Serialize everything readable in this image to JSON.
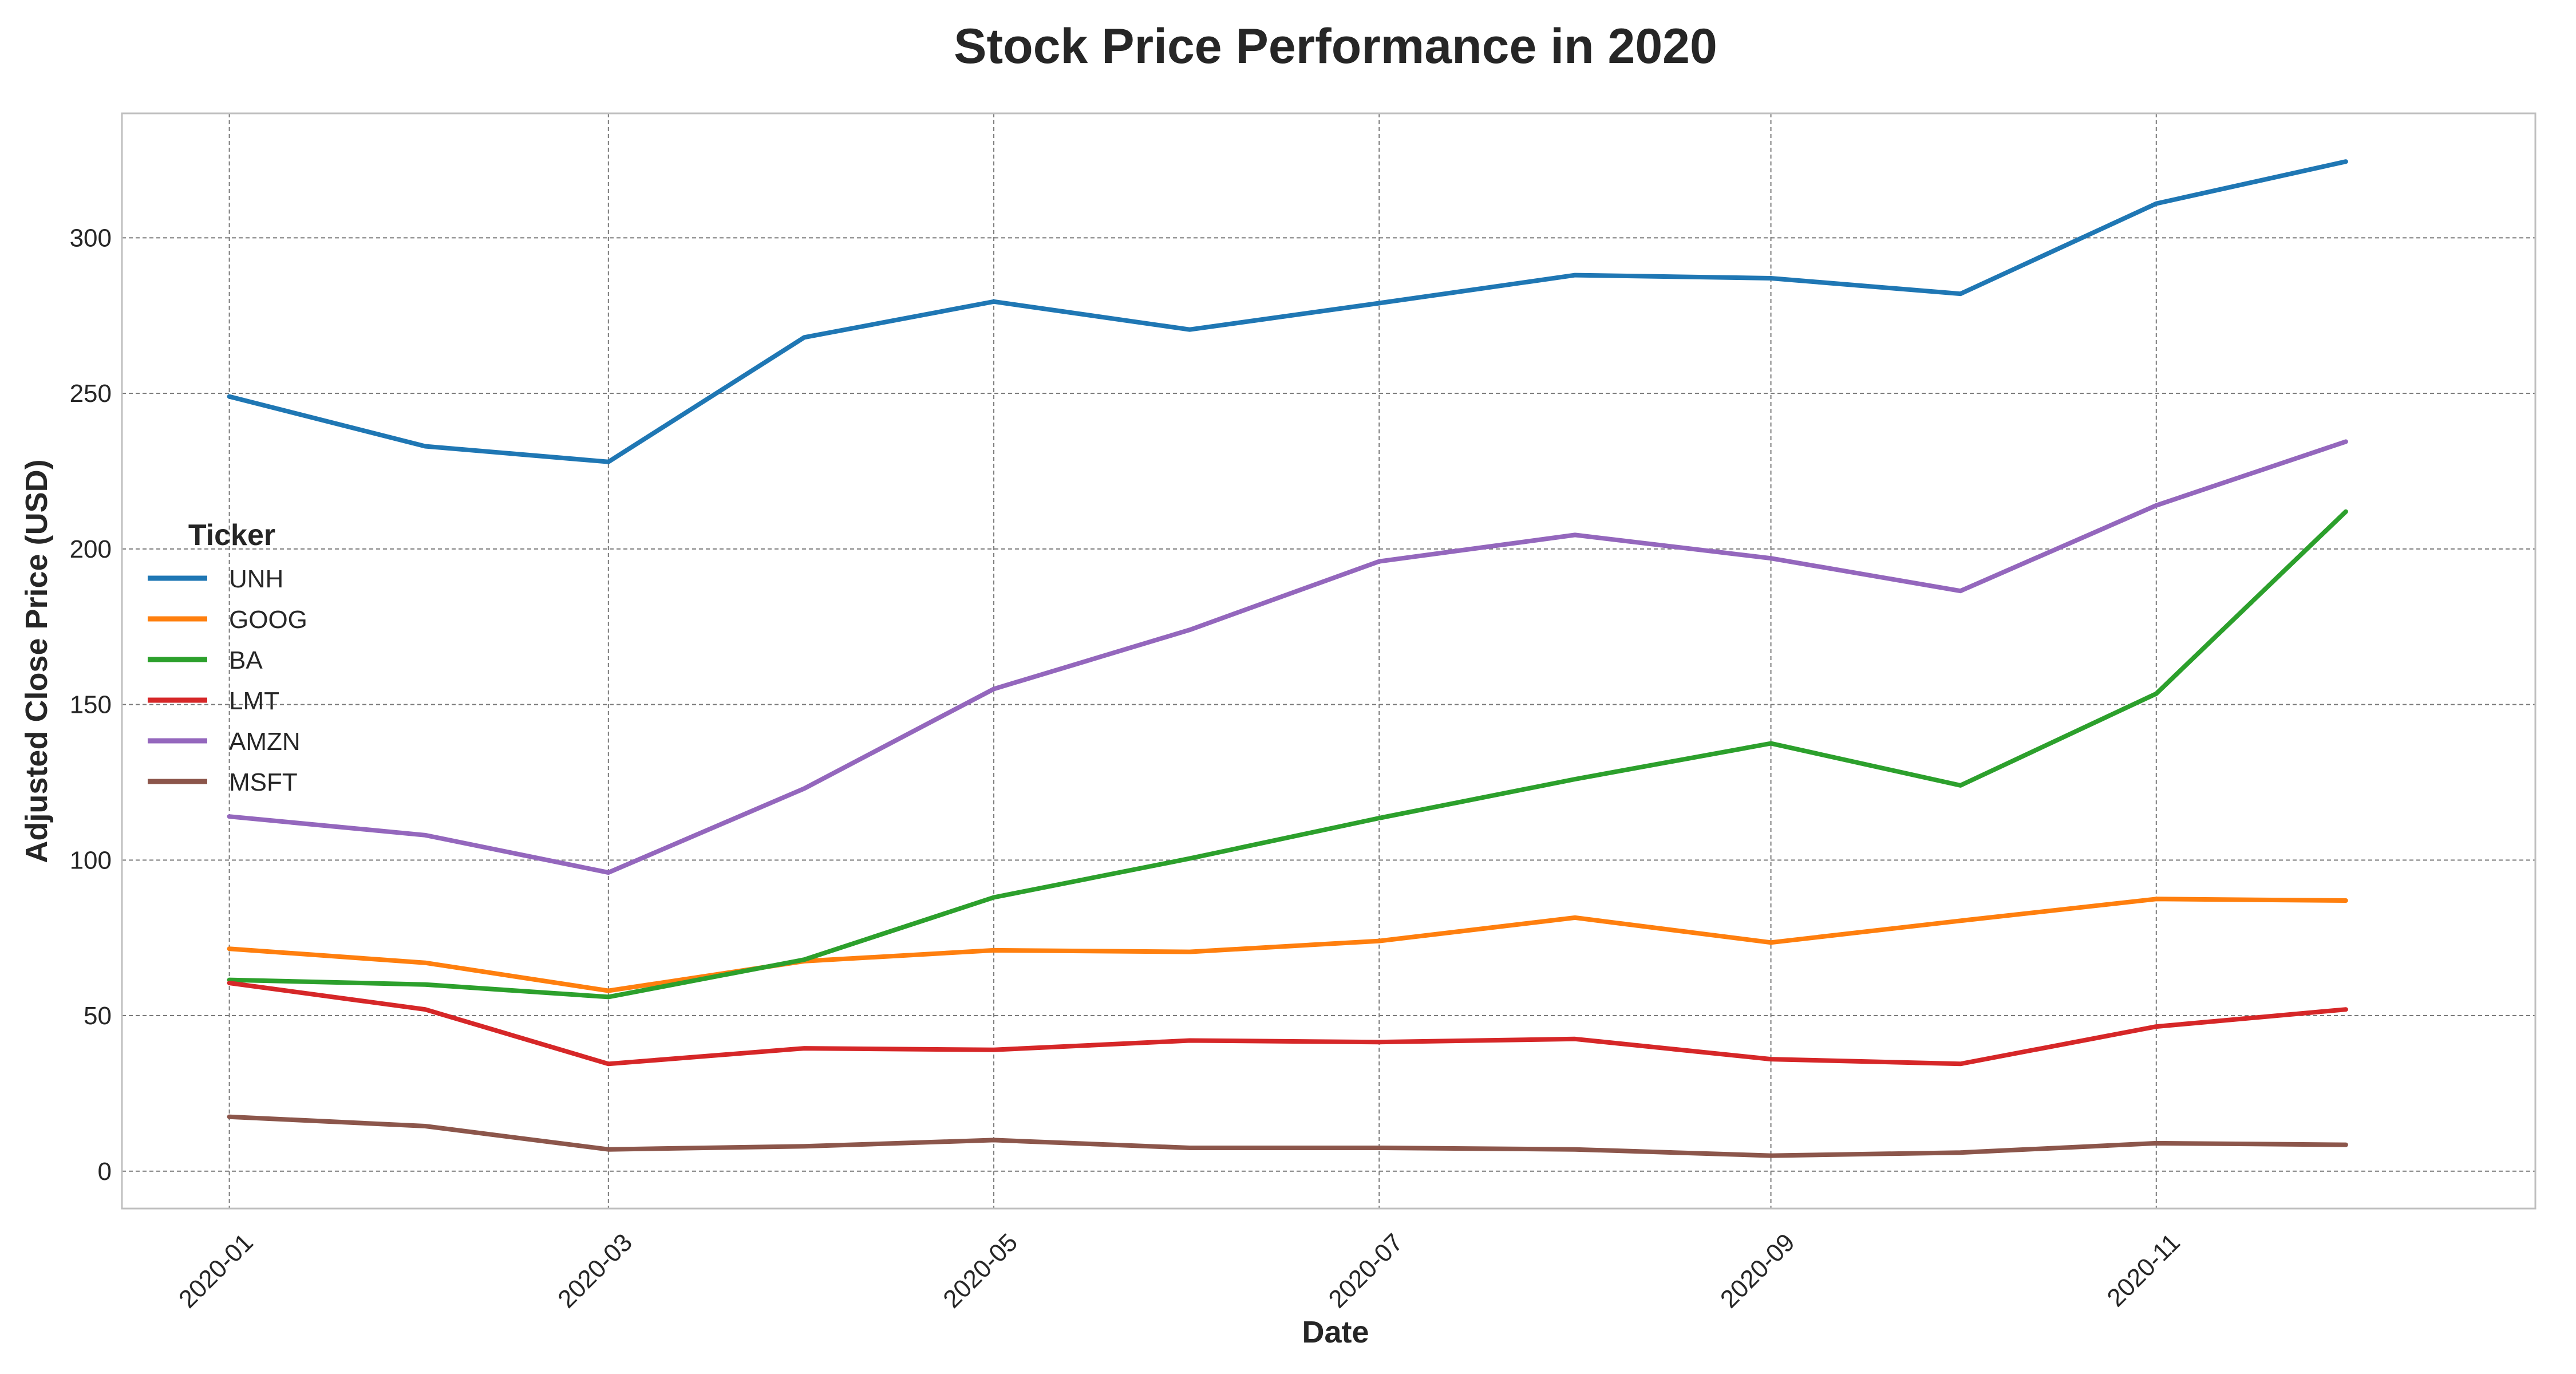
{
  "chart_data": {
    "type": "line",
    "title": "Stock Price Performance in 2020",
    "xlabel": "Date",
    "ylabel": "Adjusted Close Price (USD)",
    "x": [
      "2020-01",
      "2020-02",
      "2020-03",
      "2020-04",
      "2020-05",
      "2020-06",
      "2020-07",
      "2020-08",
      "2020-09",
      "2020-10",
      "2020-11",
      "2020-12"
    ],
    "x_ticks": [
      "2020-01",
      "2020-03",
      "2020-05",
      "2020-07",
      "2020-09",
      "2020-11"
    ],
    "xlim": [
      "2019-12-15",
      "2020-12-31"
    ],
    "ylim": [
      -12,
      340
    ],
    "y_ticks": [
      0,
      50,
      100,
      150,
      200,
      250,
      300
    ],
    "grid": true,
    "legend_title": "Ticker",
    "legend_position": "center-left",
    "series": [
      {
        "name": "UNH",
        "color": "#1f77b4",
        "values": [
          249,
          233,
          228,
          268,
          279.5,
          270.5,
          279,
          288,
          287,
          282,
          311,
          324.5
        ]
      },
      {
        "name": "GOOG",
        "color": "#ff7f0e",
        "values": [
          71.5,
          67,
          58,
          67.5,
          71,
          70.5,
          74,
          81.5,
          73.5,
          80.5,
          87.5,
          87
        ]
      },
      {
        "name": "BA",
        "color": "#2ca02c",
        "values": [
          61.5,
          60,
          56,
          68,
          88,
          100.5,
          113.5,
          126,
          137.5,
          124,
          153.5,
          212
        ]
      },
      {
        "name": "LMT",
        "color": "#d62728",
        "values": [
          60.5,
          52,
          34.5,
          39.5,
          39,
          42,
          41.5,
          42.5,
          36,
          34.5,
          46.5,
          52
        ]
      },
      {
        "name": "AMZN",
        "color": "#9467bd",
        "values": [
          114,
          108,
          96,
          123,
          155,
          174,
          196,
          204.5,
          197,
          186.5,
          214,
          234.5
        ]
      },
      {
        "name": "MSFT",
        "color": "#8c564b",
        "values": [
          17.5,
          14.5,
          7,
          8,
          10,
          7.5,
          7.5,
          7,
          5,
          6,
          9,
          8.5
        ]
      }
    ]
  }
}
